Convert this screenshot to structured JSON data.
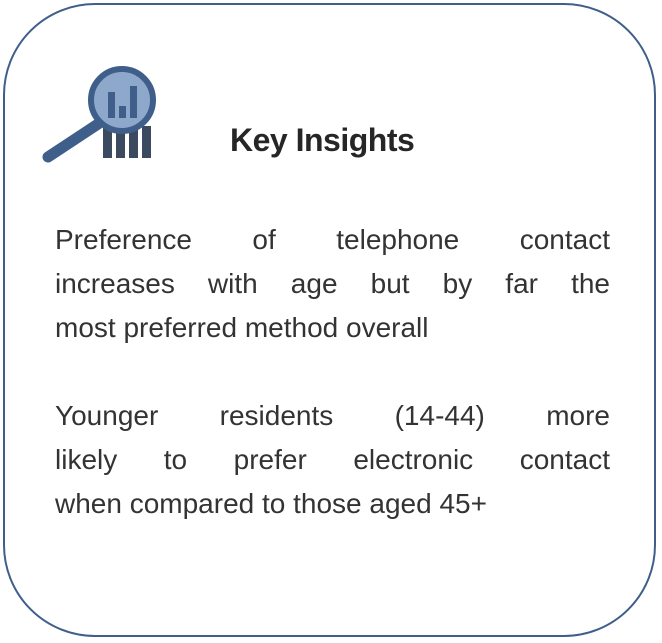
{
  "header": {
    "title": "Key Insights"
  },
  "paragraphs": [
    [
      "Preference of telephone contact",
      "increases with age but by far the",
      "most preferred method overall"
    ],
    [
      "Younger residents (14-44) more",
      "likely to prefer electronic contact",
      "when compared to those aged 45+"
    ]
  ]
}
